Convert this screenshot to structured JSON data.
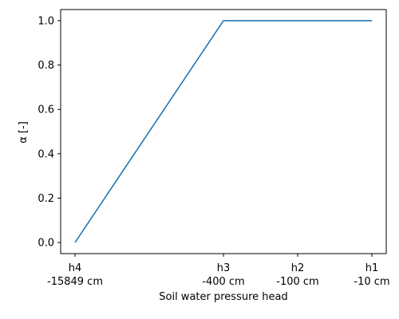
{
  "chart_data": {
    "type": "line",
    "xlabel": "Soil water pressure head",
    "ylabel": "α [-]",
    "ylim": [
      -0.05,
      1.05
    ],
    "yticks": [
      "0.0",
      "0.2",
      "0.4",
      "0.6",
      "0.8",
      "1.0"
    ],
    "x_ticks": [
      {
        "label": "h4",
        "value": "-15849 cm"
      },
      {
        "label": "h3",
        "value": "-400 cm"
      },
      {
        "label": "h2",
        "value": "-100 cm"
      },
      {
        "label": "h1",
        "value": "-10 cm"
      }
    ],
    "series": [
      {
        "color": "#1f77b4",
        "points": [
          {
            "x": "h4",
            "y": 0.0
          },
          {
            "x": "h3",
            "y": 1.0
          },
          {
            "x": "h2",
            "y": 1.0
          },
          {
            "x": "h1",
            "y": 1.0
          }
        ]
      }
    ],
    "grid": false,
    "legend": "none"
  }
}
